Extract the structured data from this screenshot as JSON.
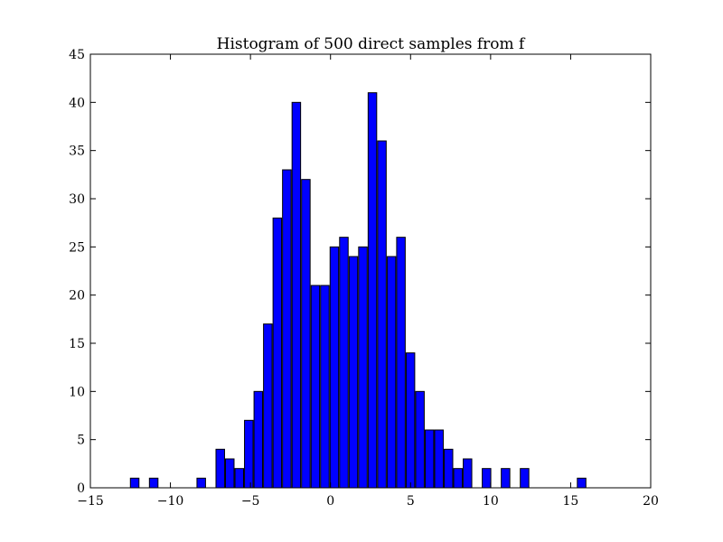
{
  "chart_data": {
    "type": "bar",
    "title": "Histogram of 500 direct samples from f",
    "xlabel": "",
    "ylabel": "",
    "xlim": [
      -15,
      20
    ],
    "ylim": [
      0,
      45
    ],
    "xticks": [
      -15,
      -10,
      -5,
      0,
      5,
      10,
      15,
      20
    ],
    "yticks": [
      0,
      5,
      10,
      15,
      20,
      25,
      30,
      35,
      40,
      45
    ],
    "xtick_labels": [
      "−15",
      "−10",
      "−5",
      "0",
      "5",
      "10",
      "15",
      "20"
    ],
    "ytick_labels": [
      "0",
      "5",
      "10",
      "15",
      "20",
      "25",
      "30",
      "35",
      "40",
      "45"
    ],
    "grid": false,
    "bar_color": "#0000ff",
    "bin_start": -12.5,
    "bin_width": 0.594,
    "values": [
      1,
      0,
      1,
      0,
      0,
      0,
      0,
      1,
      0,
      4,
      3,
      2,
      7,
      10,
      17,
      28,
      33,
      40,
      32,
      21,
      21,
      25,
      26,
      24,
      25,
      41,
      36,
      24,
      26,
      14,
      10,
      6,
      6,
      4,
      2,
      3,
      0,
      2,
      0,
      2,
      0,
      2,
      0,
      0,
      0,
      0,
      0,
      1
    ]
  }
}
